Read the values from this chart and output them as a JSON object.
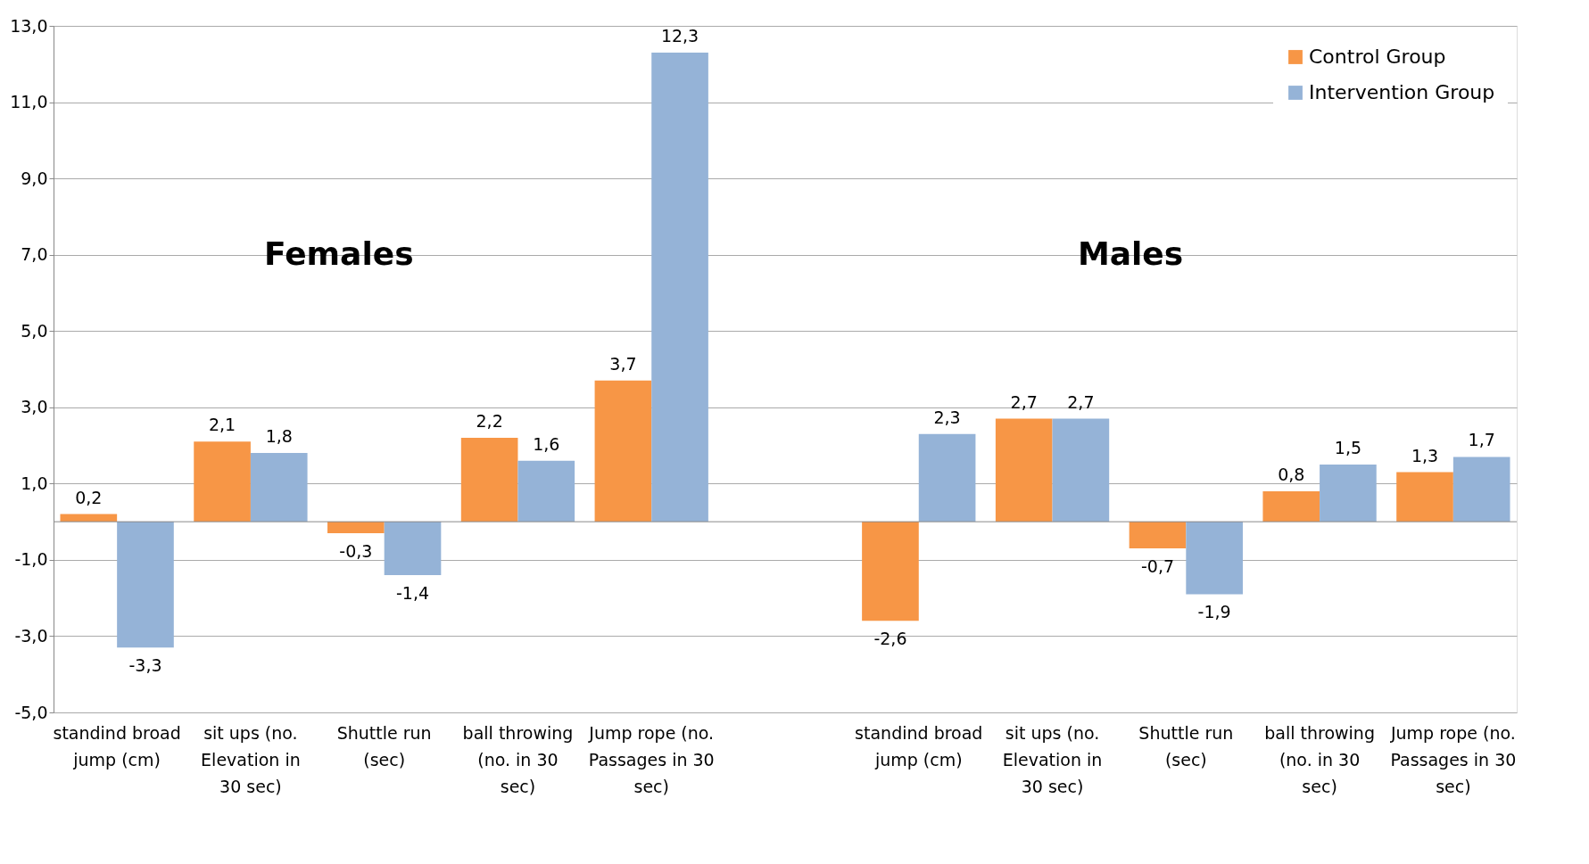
{
  "chart_data": {
    "type": "bar",
    "categories": [
      "standind broad jump (cm)",
      "sit ups (no. Elevation in 30 sec)",
      "Shuttle run (sec)",
      "ball throwing (no. in 30 sec)",
      "Jump rope (no. Passages in 30 sec)",
      null,
      "standind broad jump (cm)",
      "sit ups (no. Elevation in 30 sec)",
      "Shuttle run (sec)",
      "ball throwing (no. in 30 sec)",
      "Jump rope (no. Passages in 30 sec)"
    ],
    "series": [
      {
        "name": "Control Group",
        "color": "#f79646",
        "values": [
          0.2,
          2.1,
          -0.3,
          2.2,
          3.7,
          null,
          -2.6,
          2.7,
          -0.7,
          0.8,
          1.3
        ],
        "value_labels": [
          "0,2",
          "2,1",
          "-0,3",
          "2,2",
          "3,7",
          null,
          "-2,6",
          "2,7",
          "-0,7",
          "0,8",
          "1,3"
        ]
      },
      {
        "name": "Intervention Group",
        "color": "#95b3d7",
        "values": [
          -3.3,
          1.8,
          -1.4,
          1.6,
          12.3,
          null,
          2.3,
          2.7,
          -1.9,
          1.5,
          1.7
        ],
        "value_labels": [
          "-3,3",
          "1,8",
          "-1,4",
          "1,6",
          "12,3",
          null,
          "2,3",
          "2,7",
          "-1,9",
          "1,5",
          "1,7"
        ]
      }
    ],
    "annotations": [
      "Females",
      "Males"
    ],
    "ylim": [
      -5,
      13
    ],
    "yticks": [
      {
        "value": -5,
        "label": "-5,0"
      },
      {
        "value": -3,
        "label": "-3,0"
      },
      {
        "value": -1,
        "label": "-1,0"
      },
      {
        "value": 1,
        "label": "1,0"
      },
      {
        "value": 3,
        "label": "3,0"
      },
      {
        "value": 5,
        "label": "5,0"
      },
      {
        "value": 7,
        "label": "7,0"
      },
      {
        "value": 9,
        "label": "9,0"
      },
      {
        "value": 11,
        "label": "11,0"
      },
      {
        "value": 13,
        "label": "13,0"
      }
    ],
    "grid": "y",
    "legend": "top right"
  }
}
